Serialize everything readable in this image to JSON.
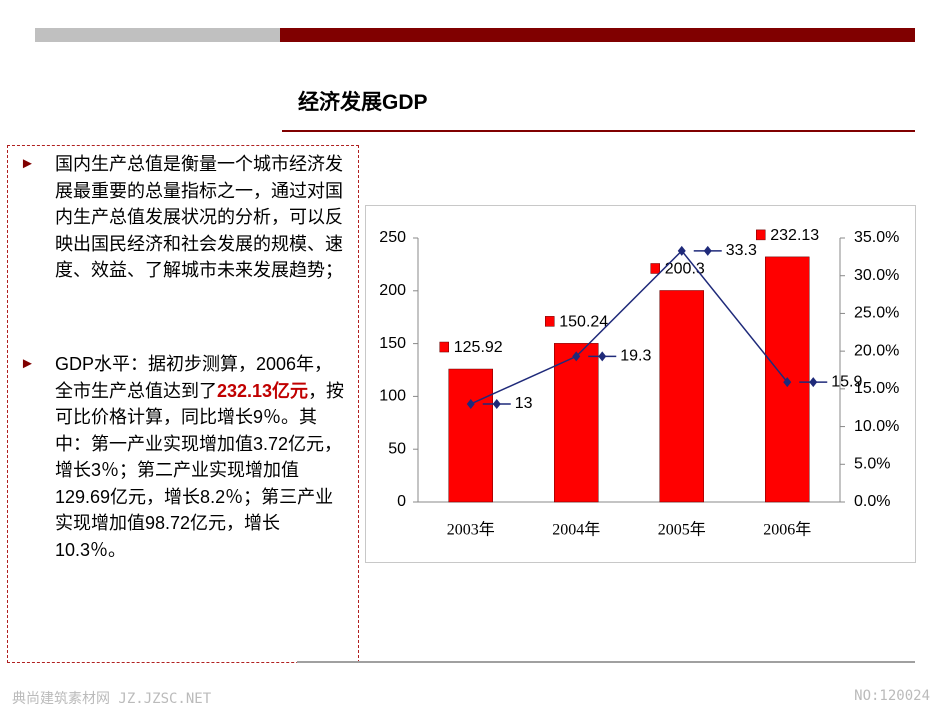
{
  "slide_title": "经济发展GDP",
  "paragraphs": [
    {
      "text": "国内生产总值是衡量一个城市经济发展最重要的总量指标之一，通过对国内生产总值发展状况的分析，可以反映出国民经济和社会发展的规模、速度、效益、了解城市未来发展趋势；"
    },
    {
      "before": "GDP水平：据初步测算，2006年，全市生产总值达到了",
      "highlight": "232.13亿元",
      "after": "，按可比价格计算，同比增长9％。其中：第一产业实现增加值3.72亿元，增长3％；第二产业实现增加值129.69亿元，增长8.2％；第三产业实现增加值98.72亿元，增长10.3％。"
    }
  ],
  "footer": {
    "left": "典尚建筑素材网 JZ.JZSC.NET",
    "right": "NO:120024"
  },
  "chart_data": {
    "type": "bar",
    "categories": [
      "2003年",
      "2004年",
      "2005年",
      "2006年"
    ],
    "series": [
      {
        "type": "bar",
        "color": "#ff0000",
        "values": [
          125.92,
          150.24,
          200.3,
          232.13
        ]
      },
      {
        "type": "line",
        "axis": "y2",
        "color": "#1f2a7a",
        "values": [
          13.0,
          19.3,
          33.3,
          15.9
        ],
        "value_labels": [
          "13.0%",
          "19.3%",
          "33.3%",
          "15.9%"
        ]
      }
    ],
    "ylim": [
      0,
      250
    ],
    "yticks": [
      0,
      50,
      100,
      150,
      200,
      250
    ],
    "y2lim": [
      0,
      35
    ],
    "y2ticks": [
      {
        "value": 0,
        "label": "0.0%"
      },
      {
        "value": 5,
        "label": "5.0%"
      },
      {
        "value": 10,
        "label": "10.0%"
      },
      {
        "value": 15,
        "label": "15.0%"
      },
      {
        "value": 20,
        "label": "20.0%"
      },
      {
        "value": 25,
        "label": "25.0%"
      },
      {
        "value": 30,
        "label": "30.0%"
      },
      {
        "value": 35,
        "label": "35.0%"
      }
    ]
  }
}
